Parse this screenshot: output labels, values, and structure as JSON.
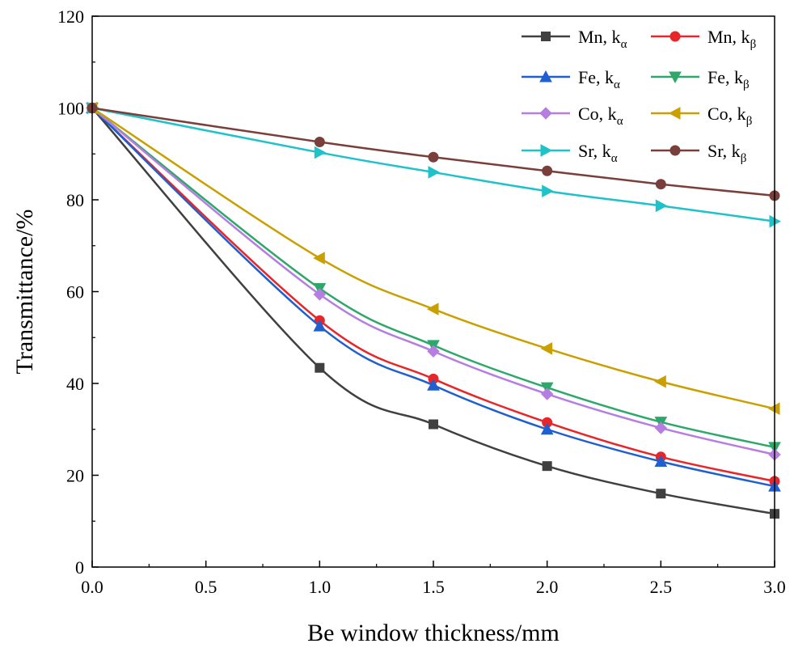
{
  "chart_data": {
    "type": "line",
    "title": "",
    "xlabel": "Be window thickness/mm",
    "ylabel": "Transmittance/%",
    "xlim": [
      0,
      3
    ],
    "ylim": [
      0,
      120
    ],
    "x": [
      0,
      1,
      1.5,
      2,
      2.5,
      3
    ],
    "xticks": [
      "0.0",
      "0.5",
      "1.0",
      "1.5",
      "2.0",
      "2.5",
      "3.0"
    ],
    "yticks": [
      "0",
      "20",
      "40",
      "60",
      "80",
      "100",
      "120"
    ],
    "legend_position": "top-right",
    "series": [
      {
        "name": "Mn, kα",
        "label": "Mn, k",
        "sub": "α",
        "color": "#404040",
        "marker": "square",
        "values": [
          100,
          43.4,
          31.1,
          22.0,
          16.0,
          11.6
        ]
      },
      {
        "name": "Mn, kβ",
        "label": "Mn, k",
        "sub": "β",
        "color": "#e8262a",
        "marker": "circle",
        "values": [
          100,
          53.7,
          41.0,
          31.5,
          24.0,
          18.7
        ]
      },
      {
        "name": "Fe, kα",
        "label": "Fe, k",
        "sub": "α",
        "color": "#1f5fcf",
        "marker": "triangle-up",
        "values": [
          100,
          52.5,
          39.6,
          30.0,
          23.0,
          17.6
        ]
      },
      {
        "name": "Fe, kβ",
        "label": "Fe, k",
        "sub": "β",
        "color": "#2ea86a",
        "marker": "triangle-down",
        "values": [
          100,
          60.7,
          48.3,
          39.1,
          31.6,
          26.1
        ]
      },
      {
        "name": "Co, kα",
        "label": "Co, k",
        "sub": "α",
        "color": "#b57ee0",
        "marker": "diamond",
        "values": [
          100,
          59.4,
          47.0,
          37.7,
          30.3,
          24.5
        ]
      },
      {
        "name": "Co, kβ",
        "label": "Co, k",
        "sub": "β",
        "color": "#c9a000",
        "marker": "triangle-left",
        "values": [
          100,
          67.3,
          56.2,
          47.6,
          40.4,
          34.5
        ]
      },
      {
        "name": "Sr, kα",
        "label": "Sr, k",
        "sub": "α",
        "color": "#1fc2c8",
        "marker": "triangle-right",
        "values": [
          100,
          90.3,
          86.0,
          81.9,
          78.7,
          75.3
        ]
      },
      {
        "name": "Sr, kβ",
        "label": "Sr, k",
        "sub": "β",
        "color": "#7a3f3a",
        "marker": "circle",
        "values": [
          100,
          92.6,
          89.3,
          86.3,
          83.4,
          80.9
        ]
      }
    ]
  }
}
